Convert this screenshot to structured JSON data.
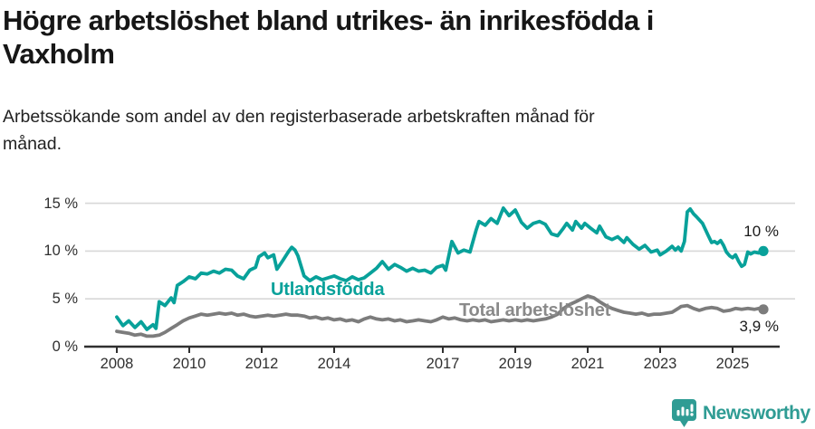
{
  "header": {
    "title_lines": [
      "Högre arbetslöshet bland utrikes- än inrikesfödda i",
      "Vaxholm"
    ],
    "subtitle_lines": [
      "Arbetssökande som andel av den registerbaserade arbetskraften månad för",
      "månad."
    ]
  },
  "footer": {
    "brand": "Newsworthy",
    "logo_icon": "newsworthy-pin-barchart-icon",
    "brand_color": "#2f9c94"
  },
  "colors": {
    "series_utlandsfodda": "#08a19a",
    "series_total": "#7c7c7c",
    "series_total_label": "#8a8a8a",
    "gridline": "#d8d8d8",
    "axis": "#2f2f2f",
    "text": "#303030"
  },
  "chart_data": {
    "type": "line",
    "title": "Högre arbetslöshet bland utrikes- än inrikesfödda i Vaxholm",
    "subtitle": "Arbetssökande som andel av den registerbaserade arbetskraften månad för månad.",
    "unit": "%",
    "grid": true,
    "x_axis": {
      "tick_values": [
        2008,
        2010,
        2012,
        2014,
        2017,
        2019,
        2021,
        2023,
        2025
      ],
      "tick_labels": [
        "2008",
        "2010",
        "2012",
        "2014",
        "2017",
        "2019",
        "2021",
        "2023",
        "2025"
      ],
      "range": [
        2008,
        2025.85
      ]
    },
    "y_axis": {
      "tick_values": [
        0,
        5,
        10,
        15
      ],
      "tick_labels": [
        "0 %",
        "5 %",
        "10 %",
        "15 %"
      ],
      "range": [
        0,
        16.5
      ]
    },
    "series": [
      {
        "name": "Utlandsfödda",
        "color": "#08a19a",
        "end_label": "10 %",
        "end_value": 10,
        "points": [
          [
            2008.0,
            3.1
          ],
          [
            2008.17,
            2.2
          ],
          [
            2008.33,
            2.7
          ],
          [
            2008.5,
            2.0
          ],
          [
            2008.67,
            2.6
          ],
          [
            2008.83,
            1.8
          ],
          [
            2009.0,
            2.3
          ],
          [
            2009.08,
            1.9
          ],
          [
            2009.17,
            4.7
          ],
          [
            2009.33,
            4.3
          ],
          [
            2009.5,
            5.1
          ],
          [
            2009.58,
            4.6
          ],
          [
            2009.67,
            6.4
          ],
          [
            2009.83,
            6.8
          ],
          [
            2010.0,
            7.3
          ],
          [
            2010.17,
            7.1
          ],
          [
            2010.33,
            7.7
          ],
          [
            2010.5,
            7.6
          ],
          [
            2010.67,
            7.9
          ],
          [
            2010.83,
            7.7
          ],
          [
            2011.0,
            8.1
          ],
          [
            2011.17,
            8.0
          ],
          [
            2011.33,
            7.4
          ],
          [
            2011.5,
            7.1
          ],
          [
            2011.67,
            8.0
          ],
          [
            2011.83,
            8.3
          ],
          [
            2011.92,
            9.4
          ],
          [
            2012.0,
            9.6
          ],
          [
            2012.08,
            9.8
          ],
          [
            2012.17,
            9.3
          ],
          [
            2012.33,
            9.6
          ],
          [
            2012.42,
            8.1
          ],
          [
            2012.58,
            9.0
          ],
          [
            2012.75,
            10.0
          ],
          [
            2012.83,
            10.4
          ],
          [
            2012.92,
            10.1
          ],
          [
            2013.0,
            9.5
          ],
          [
            2013.08,
            8.5
          ],
          [
            2013.17,
            7.4
          ],
          [
            2013.33,
            6.9
          ],
          [
            2013.5,
            7.3
          ],
          [
            2013.67,
            7.0
          ],
          [
            2013.83,
            7.2
          ],
          [
            2014.0,
            7.4
          ],
          [
            2014.17,
            7.1
          ],
          [
            2014.33,
            6.9
          ],
          [
            2014.5,
            7.3
          ],
          [
            2014.67,
            7.0
          ],
          [
            2014.83,
            7.2
          ],
          [
            2015.0,
            7.7
          ],
          [
            2015.17,
            8.2
          ],
          [
            2015.33,
            8.9
          ],
          [
            2015.5,
            8.1
          ],
          [
            2015.67,
            8.6
          ],
          [
            2015.83,
            8.3
          ],
          [
            2016.0,
            7.9
          ],
          [
            2016.17,
            8.2
          ],
          [
            2016.33,
            7.9
          ],
          [
            2016.5,
            8.0
          ],
          [
            2016.67,
            7.7
          ],
          [
            2016.83,
            8.3
          ],
          [
            2017.0,
            8.5
          ],
          [
            2017.08,
            8.0
          ],
          [
            2017.25,
            11.0
          ],
          [
            2017.42,
            9.8
          ],
          [
            2017.58,
            10.1
          ],
          [
            2017.75,
            9.9
          ],
          [
            2017.92,
            12.2
          ],
          [
            2018.0,
            13.1
          ],
          [
            2018.17,
            12.7
          ],
          [
            2018.33,
            13.4
          ],
          [
            2018.5,
            12.9
          ],
          [
            2018.67,
            14.5
          ],
          [
            2018.83,
            13.7
          ],
          [
            2019.0,
            14.3
          ],
          [
            2019.17,
            13.0
          ],
          [
            2019.33,
            12.4
          ],
          [
            2019.5,
            12.9
          ],
          [
            2019.67,
            13.1
          ],
          [
            2019.83,
            12.8
          ],
          [
            2020.0,
            11.8
          ],
          [
            2020.17,
            11.6
          ],
          [
            2020.33,
            12.4
          ],
          [
            2020.42,
            12.9
          ],
          [
            2020.58,
            12.2
          ],
          [
            2020.67,
            13.1
          ],
          [
            2020.83,
            12.4
          ],
          [
            2020.92,
            12.9
          ],
          [
            2021.08,
            12.4
          ],
          [
            2021.25,
            11.9
          ],
          [
            2021.33,
            12.6
          ],
          [
            2021.5,
            11.5
          ],
          [
            2021.67,
            11.2
          ],
          [
            2021.83,
            11.5
          ],
          [
            2022.0,
            10.9
          ],
          [
            2022.08,
            11.4
          ],
          [
            2022.25,
            10.7
          ],
          [
            2022.42,
            10.2
          ],
          [
            2022.58,
            10.6
          ],
          [
            2022.75,
            9.9
          ],
          [
            2022.92,
            10.1
          ],
          [
            2023.0,
            9.6
          ],
          [
            2023.17,
            10.0
          ],
          [
            2023.33,
            10.5
          ],
          [
            2023.42,
            10.1
          ],
          [
            2023.5,
            10.4
          ],
          [
            2023.58,
            10.0
          ],
          [
            2023.67,
            11.0
          ],
          [
            2023.75,
            14.1
          ],
          [
            2023.83,
            14.4
          ],
          [
            2023.92,
            13.9
          ],
          [
            2024.0,
            13.6
          ],
          [
            2024.17,
            12.9
          ],
          [
            2024.33,
            11.6
          ],
          [
            2024.42,
            10.9
          ],
          [
            2024.5,
            11.0
          ],
          [
            2024.58,
            10.8
          ],
          [
            2024.67,
            11.1
          ],
          [
            2024.75,
            10.6
          ],
          [
            2024.83,
            9.9
          ],
          [
            2024.92,
            9.5
          ],
          [
            2025.0,
            9.3
          ],
          [
            2025.08,
            9.6
          ],
          [
            2025.17,
            8.9
          ],
          [
            2025.25,
            8.4
          ],
          [
            2025.33,
            8.6
          ],
          [
            2025.42,
            9.9
          ],
          [
            2025.5,
            9.7
          ],
          [
            2025.6,
            9.9
          ],
          [
            2025.72,
            9.8
          ],
          [
            2025.85,
            10.0
          ]
        ]
      },
      {
        "name": "Total arbetslöshet",
        "color": "#7c7c7c",
        "end_label": "3,9 %",
        "end_value": 3.9,
        "points": [
          [
            2008.0,
            1.6
          ],
          [
            2008.17,
            1.5
          ],
          [
            2008.33,
            1.4
          ],
          [
            2008.5,
            1.2
          ],
          [
            2008.67,
            1.3
          ],
          [
            2008.83,
            1.1
          ],
          [
            2009.0,
            1.1
          ],
          [
            2009.17,
            1.2
          ],
          [
            2009.33,
            1.5
          ],
          [
            2009.5,
            1.9
          ],
          [
            2009.67,
            2.3
          ],
          [
            2009.83,
            2.7
          ],
          [
            2010.0,
            3.0
          ],
          [
            2010.17,
            3.2
          ],
          [
            2010.33,
            3.4
          ],
          [
            2010.5,
            3.3
          ],
          [
            2010.67,
            3.4
          ],
          [
            2010.83,
            3.5
          ],
          [
            2011.0,
            3.4
          ],
          [
            2011.17,
            3.5
          ],
          [
            2011.33,
            3.3
          ],
          [
            2011.5,
            3.4
          ],
          [
            2011.67,
            3.2
          ],
          [
            2011.83,
            3.1
          ],
          [
            2012.0,
            3.2
          ],
          [
            2012.17,
            3.3
          ],
          [
            2012.33,
            3.2
          ],
          [
            2012.5,
            3.3
          ],
          [
            2012.67,
            3.4
          ],
          [
            2012.83,
            3.3
          ],
          [
            2013.0,
            3.3
          ],
          [
            2013.17,
            3.2
          ],
          [
            2013.33,
            3.0
          ],
          [
            2013.5,
            3.1
          ],
          [
            2013.67,
            2.9
          ],
          [
            2013.83,
            3.0
          ],
          [
            2014.0,
            2.8
          ],
          [
            2014.17,
            2.9
          ],
          [
            2014.33,
            2.7
          ],
          [
            2014.5,
            2.8
          ],
          [
            2014.67,
            2.6
          ],
          [
            2014.83,
            2.9
          ],
          [
            2015.0,
            3.1
          ],
          [
            2015.17,
            2.9
          ],
          [
            2015.33,
            2.8
          ],
          [
            2015.5,
            2.9
          ],
          [
            2015.67,
            2.7
          ],
          [
            2015.83,
            2.8
          ],
          [
            2016.0,
            2.6
          ],
          [
            2016.17,
            2.7
          ],
          [
            2016.33,
            2.8
          ],
          [
            2016.5,
            2.7
          ],
          [
            2016.67,
            2.6
          ],
          [
            2016.83,
            2.8
          ],
          [
            2017.0,
            3.1
          ],
          [
            2017.17,
            2.9
          ],
          [
            2017.33,
            3.0
          ],
          [
            2017.5,
            2.8
          ],
          [
            2017.67,
            2.7
          ],
          [
            2017.83,
            2.8
          ],
          [
            2018.0,
            2.7
          ],
          [
            2018.17,
            2.8
          ],
          [
            2018.33,
            2.6
          ],
          [
            2018.5,
            2.7
          ],
          [
            2018.67,
            2.8
          ],
          [
            2018.83,
            2.7
          ],
          [
            2019.0,
            2.8
          ],
          [
            2019.17,
            2.7
          ],
          [
            2019.33,
            2.8
          ],
          [
            2019.5,
            2.7
          ],
          [
            2019.67,
            2.8
          ],
          [
            2019.83,
            2.9
          ],
          [
            2020.0,
            3.1
          ],
          [
            2020.17,
            3.4
          ],
          [
            2020.33,
            4.0
          ],
          [
            2020.5,
            4.4
          ],
          [
            2020.67,
            4.7
          ],
          [
            2020.83,
            5.0
          ],
          [
            2021.0,
            5.3
          ],
          [
            2021.17,
            5.1
          ],
          [
            2021.33,
            4.7
          ],
          [
            2021.5,
            4.3
          ],
          [
            2021.67,
            4.0
          ],
          [
            2021.83,
            3.8
          ],
          [
            2022.0,
            3.6
          ],
          [
            2022.17,
            3.5
          ],
          [
            2022.33,
            3.4
          ],
          [
            2022.5,
            3.5
          ],
          [
            2022.67,
            3.3
          ],
          [
            2022.83,
            3.4
          ],
          [
            2023.0,
            3.4
          ],
          [
            2023.17,
            3.5
          ],
          [
            2023.33,
            3.6
          ],
          [
            2023.5,
            4.0
          ],
          [
            2023.58,
            4.2
          ],
          [
            2023.75,
            4.3
          ],
          [
            2023.92,
            4.0
          ],
          [
            2024.08,
            3.8
          ],
          [
            2024.25,
            4.0
          ],
          [
            2024.42,
            4.1
          ],
          [
            2024.58,
            4.0
          ],
          [
            2024.75,
            3.7
          ],
          [
            2024.92,
            3.8
          ],
          [
            2025.08,
            4.0
          ],
          [
            2025.25,
            3.9
          ],
          [
            2025.42,
            4.0
          ],
          [
            2025.6,
            3.9
          ],
          [
            2025.72,
            4.0
          ],
          [
            2025.85,
            3.9
          ]
        ]
      }
    ]
  }
}
